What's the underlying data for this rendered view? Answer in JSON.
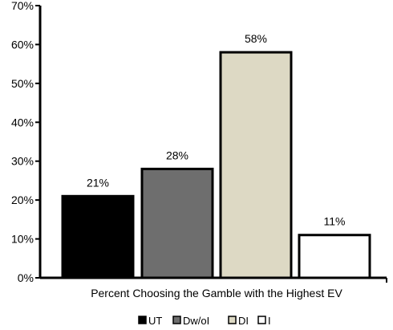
{
  "chart_data": {
    "type": "bar",
    "title": "",
    "xlabel": "Percent Choosing the Gamble with the Highest EV",
    "ylabel": "",
    "ylim": [
      0,
      70
    ],
    "yticks": [
      0,
      10,
      20,
      30,
      40,
      50,
      60,
      70
    ],
    "ytick_labels": [
      "0%",
      "10%",
      "20%",
      "30%",
      "40%",
      "50%",
      "60%",
      "70%"
    ],
    "grid": false,
    "legend_position": "bottom",
    "series": [
      {
        "name": "UT",
        "value": 21,
        "label": "21%",
        "color": "#000000"
      },
      {
        "name": "Dw/oI",
        "value": 28,
        "label": "28%",
        "color": "#6e6e6e"
      },
      {
        "name": "DI",
        "value": 58,
        "label": "58%",
        "color": "#ddd9c4"
      },
      {
        "name": "I",
        "value": 11,
        "label": "11%",
        "color": "#ffffff"
      }
    ]
  }
}
